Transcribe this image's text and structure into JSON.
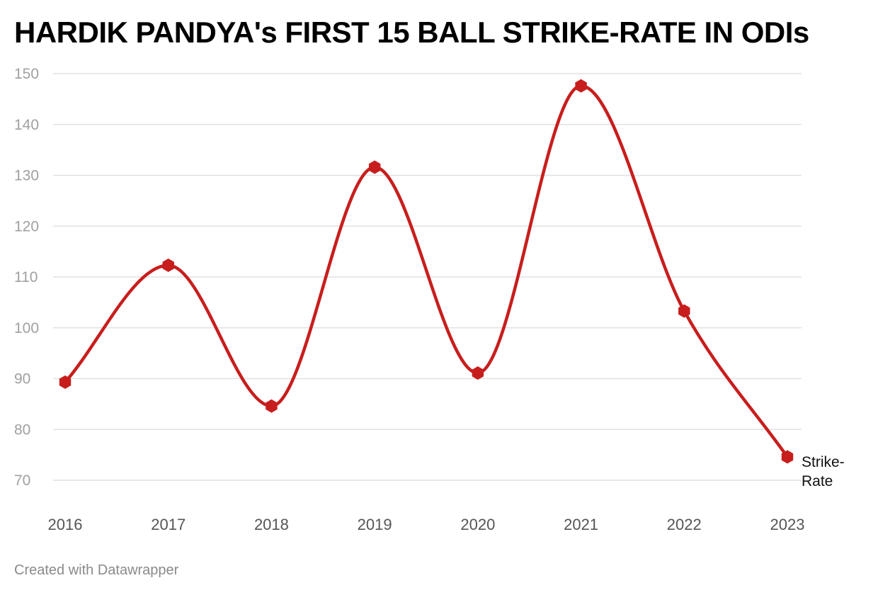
{
  "title": "HARDIK PANDYA's FIRST 15 BALL STRIKE-RATE IN ODIs",
  "footer": "Created with Datawrapper",
  "chart_data": {
    "type": "line",
    "title": "HARDIK PANDYA's FIRST 15 BALL STRIKE-RATE IN ODIs",
    "xlabel": "",
    "ylabel": "",
    "x": [
      "2016",
      "2017",
      "2018",
      "2019",
      "2020",
      "2021",
      "2022",
      "2023"
    ],
    "series": [
      {
        "name": "Strike-Rate",
        "label_lines": [
          "Strike-",
          "Rate"
        ],
        "values": [
          89.3,
          112.3,
          84.6,
          131.6,
          91.1,
          147.6,
          103.3,
          74.6
        ],
        "color": "#c71e1d"
      }
    ],
    "yticks": [
      70,
      80,
      90,
      100,
      110,
      120,
      130,
      140,
      150
    ],
    "ylim": [
      70,
      150
    ],
    "grid": true,
    "curve": "smooth",
    "marker": "hexagon"
  },
  "colors": {
    "line": "#c71e1d",
    "grid": "#e1e1e1",
    "ytick_text": "#a0a0a0",
    "xtick_text": "#555555"
  }
}
